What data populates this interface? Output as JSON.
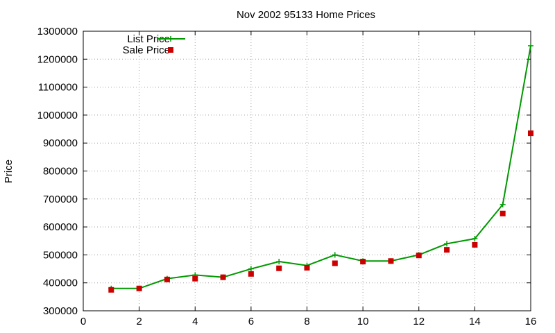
{
  "chart_data": {
    "type": "line",
    "title": "Nov 2002 95133 Home Prices",
    "xlabel": "",
    "ylabel": "Price",
    "xlim": [
      0,
      16
    ],
    "ylim": [
      300000,
      1300000
    ],
    "xticks": [
      0,
      2,
      4,
      6,
      8,
      10,
      12,
      14,
      16
    ],
    "yticks": [
      300000,
      400000,
      500000,
      600000,
      700000,
      800000,
      900000,
      1000000,
      1100000,
      1200000,
      1300000
    ],
    "grid": true,
    "legend_position": "top-left",
    "series": [
      {
        "name": "List Price",
        "style": "line-with-plus-markers",
        "color": "#009900",
        "x": [
          1,
          2,
          3,
          4,
          5,
          6,
          7,
          8,
          9,
          10,
          11,
          12,
          13,
          14,
          15,
          16
        ],
        "values": [
          380000,
          380000,
          415000,
          428000,
          420000,
          450000,
          476000,
          462000,
          500000,
          478000,
          478000,
          500000,
          540000,
          558000,
          680000,
          1248000
        ]
      },
      {
        "name": "Sale Price",
        "style": "square-markers",
        "color": "#cc0000",
        "x": [
          1,
          2,
          3,
          4,
          5,
          6,
          7,
          8,
          9,
          10,
          11,
          12,
          13,
          14,
          15,
          16
        ],
        "values": [
          375000,
          380000,
          412000,
          415000,
          420000,
          432000,
          452000,
          454000,
          470000,
          476000,
          478000,
          498000,
          518000,
          536000,
          648000,
          935000
        ]
      }
    ]
  }
}
